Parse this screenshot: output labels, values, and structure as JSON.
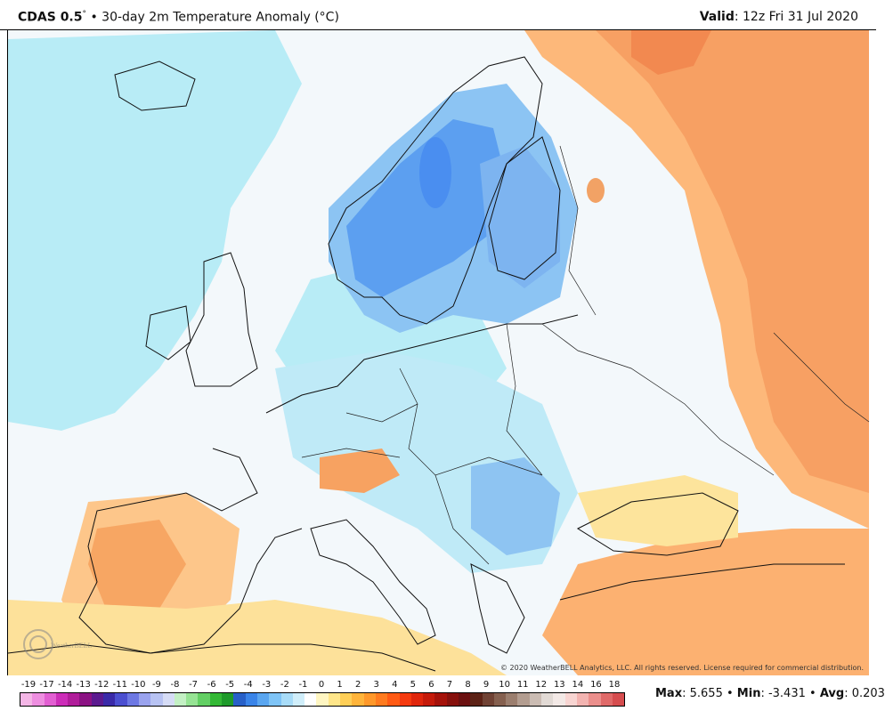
{
  "header": {
    "model": "CDAS 0.5",
    "degree_mark": "°",
    "bullet": "•",
    "product": "30-day 2m Temperature Anomaly (°C)",
    "valid_label": "Valid",
    "valid_value": ": 12z Fri 31 Jul 2020"
  },
  "map": {
    "copyright": "© 2020 WeatherBELL Analytics, LLC. All rights reserved. License required for commercial distribution.",
    "logo_text": "WeatherBELL"
  },
  "legend": {
    "labels": [
      "-19",
      "-17",
      "-14",
      "-13",
      "-12",
      "-11",
      "-10",
      "-9",
      "-8",
      "-7",
      "-6",
      "-5",
      "-4",
      "-3",
      "-2",
      "-1",
      "0",
      "1",
      "2",
      "3",
      "4",
      "5",
      "6",
      "7",
      "8",
      "9",
      "10",
      "11",
      "12",
      "13",
      "14",
      "16",
      "18"
    ],
    "colors": [
      "#f4b6e6",
      "#ee8ee0",
      "#e25fd2",
      "#cc2db8",
      "#b01d9a",
      "#8b1283",
      "#5b1a8f",
      "#3a2aa8",
      "#4b4fd0",
      "#6d78e3",
      "#9aa3ee",
      "#b8c3f3",
      "#d6dcf6",
      "#c3f0c4",
      "#96e394",
      "#63cf64",
      "#33b835",
      "#1e9a2a",
      "#2860c8",
      "#3a84e8",
      "#5aa6f0",
      "#7fc4f6",
      "#a8dcf8",
      "#d0eefa",
      "#ffffff",
      "#fff6c2",
      "#ffe68a",
      "#ffcf57",
      "#ffb43a",
      "#ff982a",
      "#ff7b1f",
      "#ff5a14",
      "#f53a0f",
      "#e0260c",
      "#c51a0a",
      "#a5120a",
      "#86100c",
      "#6b1010",
      "#5c2216",
      "#704234",
      "#85604f",
      "#9b7e6e",
      "#b39d90",
      "#cbbcb3",
      "#e2dad5",
      "#f3e9e6",
      "#f8d5d2",
      "#f3b4b1",
      "#eb8f8c",
      "#e06a69",
      "#d64d4f"
    ]
  },
  "stats": {
    "max_label": "Max",
    "max_value": ": 5.655",
    "min_label": "Min",
    "min_value": ": -3.431",
    "avg_label": "Avg",
    "avg_value": ": 0.203",
    "sep": "•"
  }
}
